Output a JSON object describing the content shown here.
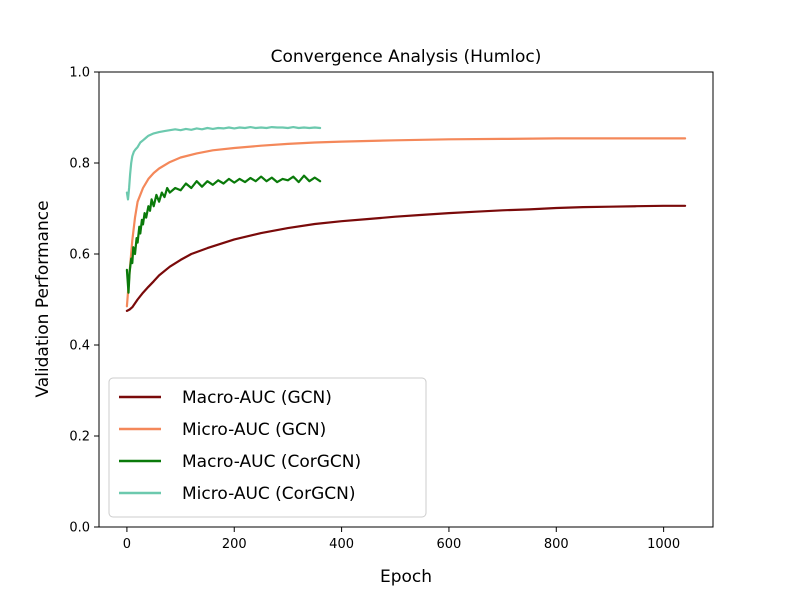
{
  "chart_data": {
    "type": "line",
    "title": "Convergence Analysis (Humloc)",
    "xlabel": "Epoch",
    "ylabel": "Validation Performance",
    "xlim": [
      -52,
      1092
    ],
    "ylim": [
      0.0,
      1.0
    ],
    "xticks": [
      0,
      200,
      400,
      600,
      800,
      1000
    ],
    "yticks": [
      0.0,
      0.2,
      0.4,
      0.6,
      0.8,
      1.0
    ],
    "xtick_labels": [
      "0",
      "200",
      "400",
      "600",
      "800",
      "1000"
    ],
    "ytick_labels": [
      "0.0",
      "0.2",
      "0.4",
      "0.6",
      "0.8",
      "1.0"
    ],
    "grid": false,
    "legend_position": "lower-left",
    "series": [
      {
        "name": "Macro-AUC (GCN)",
        "color": "#7a0a0a",
        "x": [
          0,
          5,
          10,
          20,
          30,
          40,
          50,
          60,
          80,
          100,
          120,
          150,
          200,
          250,
          300,
          350,
          400,
          450,
          500,
          550,
          600,
          650,
          700,
          750,
          800,
          850,
          900,
          950,
          1000,
          1040
        ],
        "y": [
          0.475,
          0.478,
          0.483,
          0.5,
          0.515,
          0.528,
          0.54,
          0.553,
          0.572,
          0.587,
          0.6,
          0.613,
          0.632,
          0.646,
          0.657,
          0.666,
          0.672,
          0.677,
          0.682,
          0.686,
          0.69,
          0.693,
          0.696,
          0.698,
          0.701,
          0.703,
          0.704,
          0.705,
          0.706,
          0.706
        ]
      },
      {
        "name": "Micro-AUC (GCN)",
        "color": "#f4885a",
        "x": [
          0,
          5,
          10,
          15,
          20,
          30,
          40,
          50,
          60,
          80,
          100,
          130,
          160,
          200,
          250,
          300,
          350,
          400,
          500,
          600,
          700,
          800,
          900,
          1000,
          1040
        ],
        "y": [
          0.485,
          0.56,
          0.63,
          0.68,
          0.715,
          0.745,
          0.765,
          0.778,
          0.788,
          0.802,
          0.812,
          0.821,
          0.828,
          0.833,
          0.838,
          0.842,
          0.845,
          0.847,
          0.85,
          0.852,
          0.853,
          0.854,
          0.854,
          0.854,
          0.854
        ]
      },
      {
        "name": "Macro-AUC (CorGCN)",
        "color": "#0a7a0a",
        "x": [
          0,
          3,
          5,
          8,
          10,
          12,
          15,
          18,
          20,
          23,
          25,
          28,
          30,
          33,
          36,
          40,
          43,
          46,
          50,
          55,
          60,
          65,
          70,
          75,
          80,
          90,
          100,
          110,
          120,
          130,
          140,
          150,
          160,
          170,
          180,
          190,
          200,
          210,
          220,
          230,
          240,
          250,
          260,
          270,
          280,
          290,
          300,
          310,
          320,
          330,
          340,
          350,
          360
        ],
        "y": [
          0.565,
          0.515,
          0.56,
          0.59,
          0.58,
          0.615,
          0.6,
          0.635,
          0.625,
          0.66,
          0.645,
          0.675,
          0.665,
          0.69,
          0.68,
          0.705,
          0.695,
          0.72,
          0.705,
          0.73,
          0.715,
          0.735,
          0.725,
          0.745,
          0.735,
          0.745,
          0.74,
          0.755,
          0.745,
          0.76,
          0.748,
          0.76,
          0.752,
          0.762,
          0.755,
          0.765,
          0.757,
          0.765,
          0.758,
          0.767,
          0.76,
          0.77,
          0.76,
          0.768,
          0.758,
          0.765,
          0.762,
          0.77,
          0.758,
          0.772,
          0.76,
          0.768,
          0.76
        ]
      },
      {
        "name": "Micro-AUC (CorGCN)",
        "color": "#6cc9ae",
        "x": [
          0,
          2,
          4,
          6,
          8,
          10,
          13,
          16,
          20,
          25,
          30,
          35,
          40,
          50,
          60,
          70,
          80,
          90,
          100,
          110,
          120,
          130,
          140,
          150,
          160,
          170,
          180,
          190,
          200,
          210,
          220,
          230,
          240,
          250,
          260,
          270,
          280,
          290,
          300,
          310,
          320,
          330,
          340,
          350,
          360
        ],
        "y": [
          0.735,
          0.72,
          0.745,
          0.775,
          0.8,
          0.815,
          0.825,
          0.83,
          0.835,
          0.845,
          0.85,
          0.855,
          0.86,
          0.865,
          0.868,
          0.87,
          0.872,
          0.874,
          0.872,
          0.875,
          0.873,
          0.876,
          0.874,
          0.877,
          0.875,
          0.877,
          0.876,
          0.878,
          0.876,
          0.878,
          0.877,
          0.879,
          0.877,
          0.878,
          0.877,
          0.879,
          0.878,
          0.878,
          0.877,
          0.879,
          0.877,
          0.878,
          0.877,
          0.878,
          0.877
        ]
      }
    ]
  }
}
